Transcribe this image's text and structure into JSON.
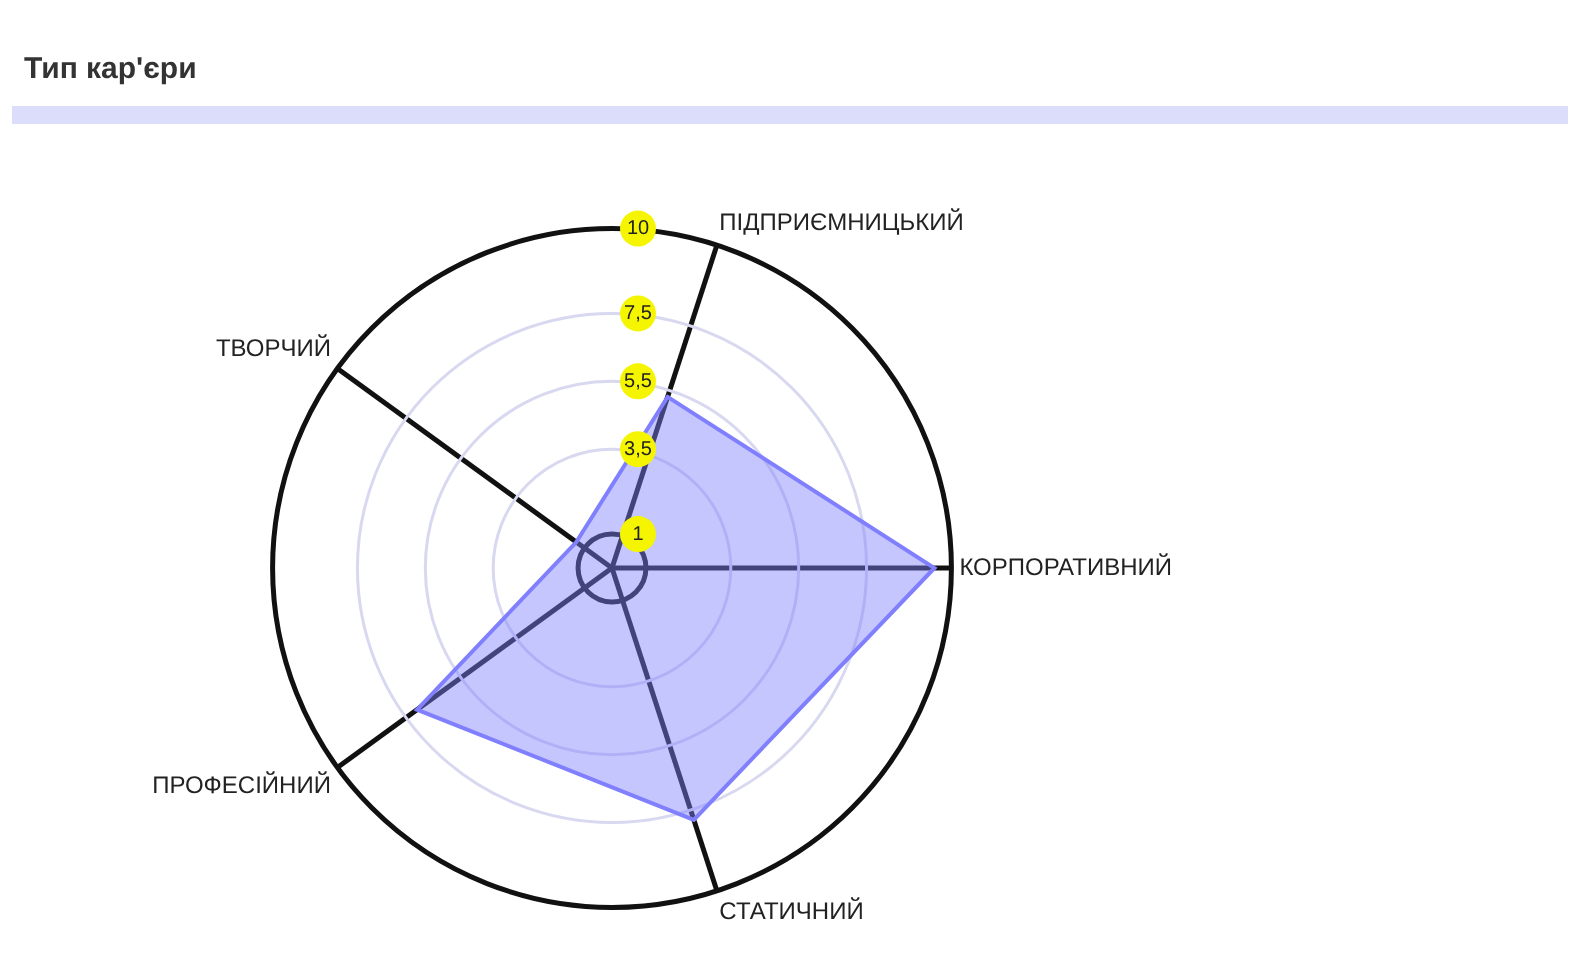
{
  "chart_data": {
    "type": "radar",
    "title": "Тип кар'єри",
    "categories": [
      "ПІДПРИЄМНИЦЬКИЙ",
      "КОРПОРАТИВНИЙ",
      "СТАТИЧНИЙ",
      "ПРОФЕСІЙНИЙ",
      "ТВОРЧИЙ"
    ],
    "series": [
      {
        "color": "#8080ff",
        "values": [
          5.3,
          9.5,
          7.8,
          7.1,
          1.3
        ]
      }
    ],
    "ylim": [
      0,
      10
    ],
    "yticks": [
      1,
      {
        "value": 3.5,
        "label": "3,5"
      },
      {
        "value": 5.5,
        "label": "5,5"
      },
      {
        "value": 7.5,
        "label": "7,5"
      },
      10
    ],
    "grid": true,
    "legend": false,
    "marker": "none"
  }
}
